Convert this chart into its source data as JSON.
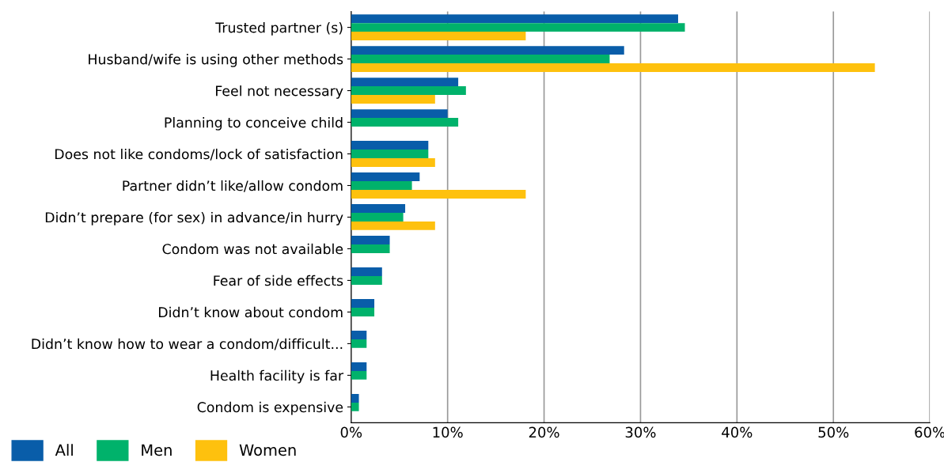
{
  "chart_data": {
    "type": "bar",
    "orientation": "horizontal",
    "categories": [
      "Trusted partner (s)",
      "Husband/wife is using other methods",
      "Feel not necessary",
      "Planning to conceive child",
      "Does not like condoms/lock of satisfaction",
      "Partner didn’t like/allow condom",
      "Didn’t prepare (for sex) in advance/in hurry",
      "Condom was not available",
      "Fear of side effects",
      "Didn’t know about condom",
      "Didn’t know how to wear a condom/difficult...",
      "Health facility is far",
      "Condom is expensive"
    ],
    "series": [
      {
        "name": "All",
        "color": "#095da9",
        "values": [
          33.9,
          28.3,
          11.1,
          10.0,
          8.0,
          7.1,
          5.6,
          4.0,
          3.2,
          2.4,
          1.6,
          1.6,
          0.8
        ]
      },
      {
        "name": "Men",
        "color": "#00b26b",
        "values": [
          34.6,
          26.8,
          11.9,
          11.1,
          8.0,
          6.3,
          5.4,
          4.0,
          3.2,
          2.4,
          1.6,
          1.6,
          0.8
        ]
      },
      {
        "name": "Women",
        "color": "#fec10e",
        "values": [
          18.1,
          54.3,
          8.7,
          null,
          8.7,
          18.1,
          8.7,
          null,
          null,
          null,
          null,
          null,
          null
        ]
      }
    ],
    "xlim": [
      0,
      60
    ],
    "xticks": [
      {
        "value": 0,
        "label": "0%"
      },
      {
        "value": 10,
        "label": "10%"
      },
      {
        "value": 20,
        "label": "20%"
      },
      {
        "value": 30,
        "label": "30%"
      },
      {
        "value": 40,
        "label": "40%"
      },
      {
        "value": 50,
        "label": "50%"
      },
      {
        "value": 60,
        "label": "60%"
      }
    ],
    "grid": "x",
    "legend": "bottom left"
  }
}
